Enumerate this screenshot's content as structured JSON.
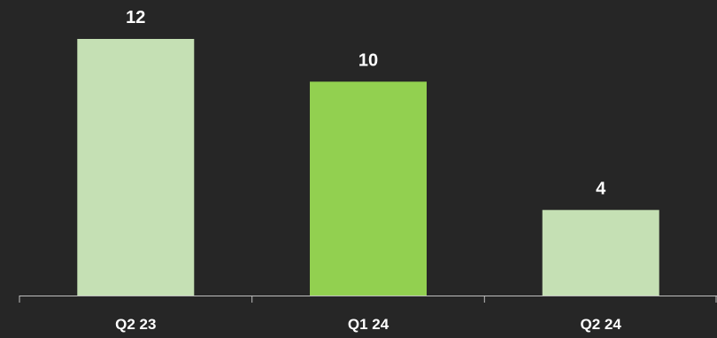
{
  "chart_data": {
    "type": "bar",
    "categories": [
      "Q2 23",
      "Q1 24",
      "Q2 24"
    ],
    "values": [
      12,
      10,
      4
    ],
    "title": "",
    "xlabel": "",
    "ylabel": "",
    "ylim": [
      0,
      12
    ],
    "grid": false,
    "legend": "none",
    "data_labels": [
      "12",
      "10",
      "4"
    ],
    "colors": {
      "background": "#262626",
      "bars": [
        "#c5e0b4",
        "#92d050",
        "#c5e0b4"
      ],
      "axis": "#bfbfbf",
      "text": "#ffffff"
    }
  }
}
